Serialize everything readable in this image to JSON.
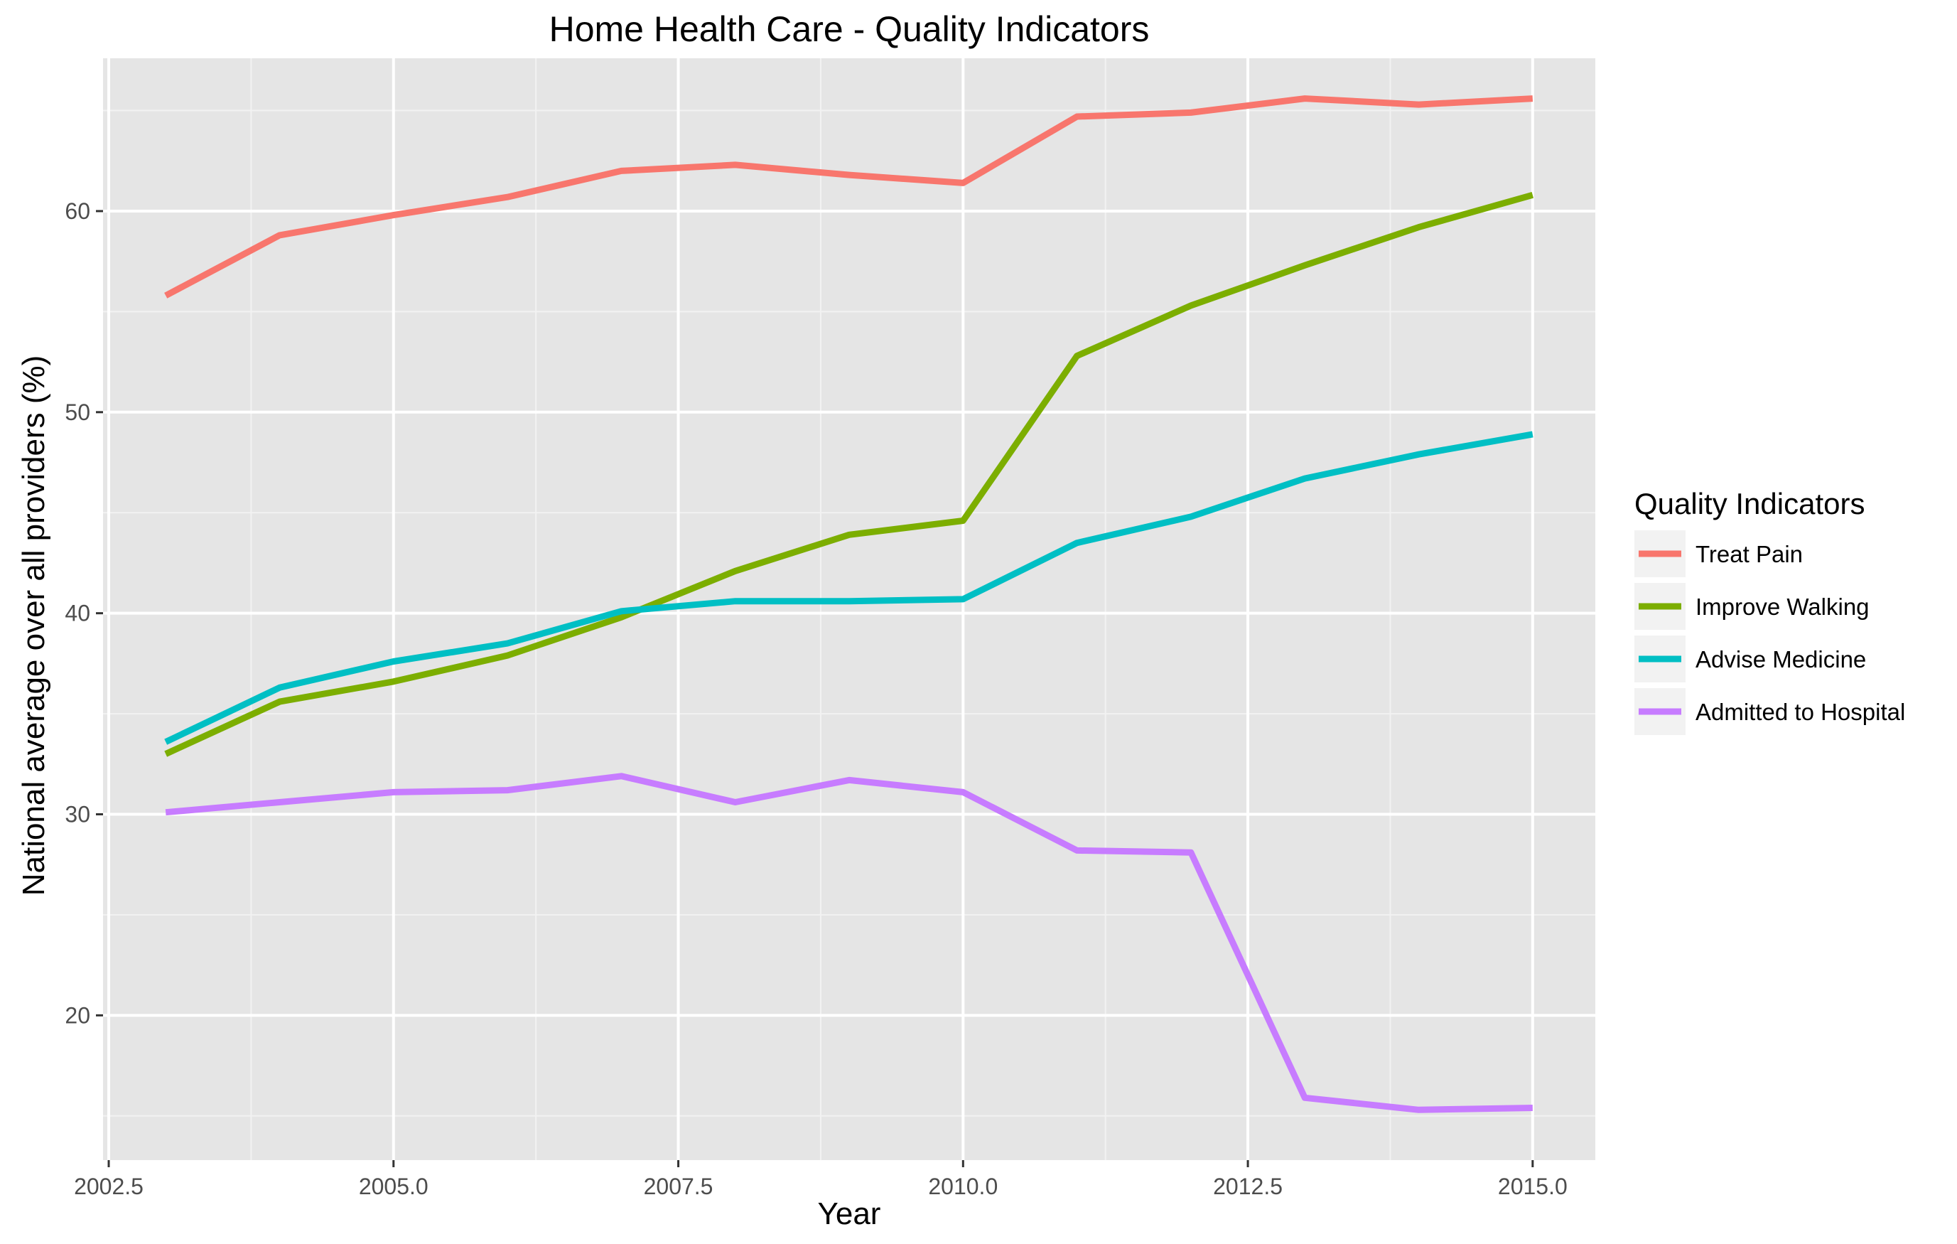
{
  "chart_data": {
    "type": "line",
    "title": "Home Health Care - Quality Indicators",
    "xlabel": "Year",
    "ylabel": "National average over all providers (%)",
    "xlim": [
      2002.45,
      2015.55
    ],
    "ylim": [
      12.8,
      67.6
    ],
    "x_ticks": [
      2002.5,
      2005.0,
      2007.5,
      2010.0,
      2012.5,
      2015.0
    ],
    "x_tick_labels": [
      "2002.5",
      "2005.0",
      "2007.5",
      "2010.0",
      "2012.5",
      "2015.0"
    ],
    "y_ticks": [
      20,
      30,
      40,
      50,
      60
    ],
    "y_tick_labels": [
      "20",
      "30",
      "40",
      "50",
      "60"
    ],
    "grid": true,
    "background": "#e5e5e5",
    "legend": {
      "title": "Quality Indicators",
      "position": "right"
    },
    "x": [
      2003,
      2004,
      2005,
      2006,
      2007,
      2008,
      2009,
      2010,
      2011,
      2012,
      2013,
      2014,
      2015
    ],
    "series": [
      {
        "name": "Treat Pain",
        "color": "#f8766d",
        "values": [
          55.8,
          58.8,
          59.8,
          60.7,
          62.0,
          62.3,
          61.8,
          61.4,
          64.7,
          64.9,
          65.6,
          65.3,
          65.6
        ]
      },
      {
        "name": "Improve Walking",
        "color": "#7cae00",
        "values": [
          33.0,
          35.6,
          36.6,
          37.9,
          39.8,
          42.1,
          43.9,
          44.6,
          52.8,
          55.3,
          57.3,
          59.2,
          60.8
        ]
      },
      {
        "name": "Advise Medicine",
        "color": "#00bfc4",
        "values": [
          33.6,
          36.3,
          37.6,
          38.5,
          40.1,
          40.6,
          40.6,
          40.7,
          43.5,
          44.8,
          46.7,
          47.9,
          48.9
        ]
      },
      {
        "name": "Admitted to Hospital",
        "color": "#c77cff",
        "values": [
          30.1,
          30.6,
          31.1,
          31.2,
          31.9,
          30.6,
          31.7,
          31.1,
          28.2,
          28.1,
          15.9,
          15.3,
          15.4
        ]
      }
    ]
  }
}
